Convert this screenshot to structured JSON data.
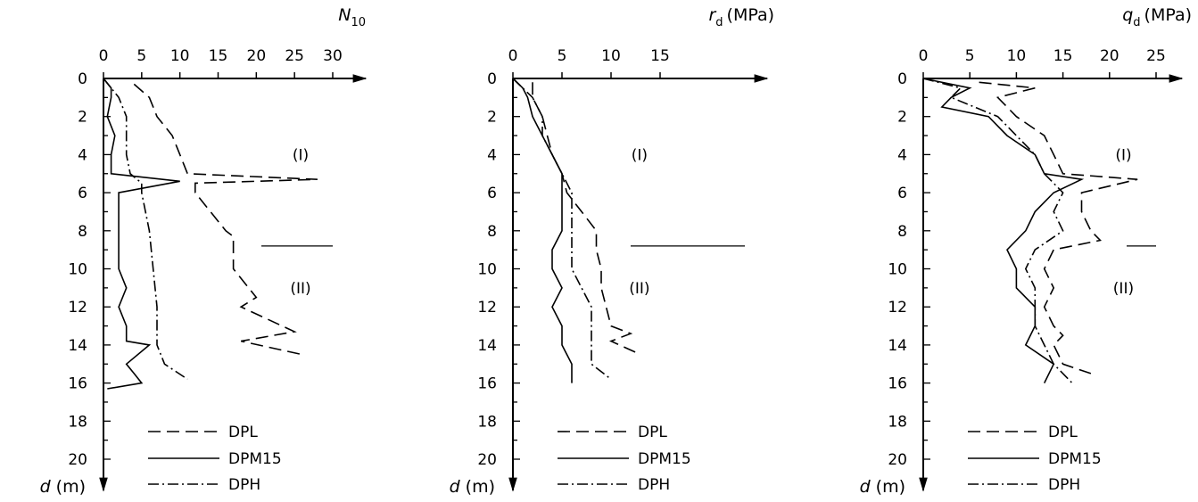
{
  "chart_data": [
    {
      "type": "line",
      "panel": "N10",
      "x_axis_label": {
        "main": "N",
        "sub": "10",
        "unit": ""
      },
      "y_axis_label": {
        "main": "d",
        "unit": "(m)"
      },
      "xlim": [
        0,
        30
      ],
      "ylim": [
        0,
        20
      ],
      "x_ticks": [
        0,
        5,
        10,
        15,
        20,
        25,
        30
      ],
      "y_ticks": [
        0,
        2,
        4,
        6,
        8,
        10,
        12,
        14,
        16,
        18,
        20
      ],
      "legend": [
        "DPL",
        "DPM15",
        "DPH"
      ],
      "legend_position": "bottom",
      "layer_labels": [
        {
          "text": "(I)",
          "depth": 4
        },
        {
          "text": "(II)",
          "depth": 11
        }
      ],
      "layer_boundary_depth": 8.8,
      "series": [
        {
          "name": "DPL",
          "style": "dashed",
          "depth": [
            0.3,
            1,
            2,
            3,
            4,
            5,
            5.3,
            5.5,
            6,
            8,
            8.3,
            10,
            11.5,
            12,
            13.3,
            13.8,
            14.5
          ],
          "value": [
            4,
            6,
            7,
            9,
            10,
            11,
            28,
            12,
            12,
            16,
            17,
            17,
            20,
            18,
            25,
            18,
            26
          ]
        },
        {
          "name": "DPM15",
          "style": "solid",
          "depth": [
            0,
            0.5,
            1,
            2,
            3,
            4,
            5,
            5.4,
            6,
            8,
            10,
            11,
            12,
            13,
            13.8,
            14,
            15,
            15.5,
            16,
            16.3
          ],
          "value": [
            0,
            1,
            1,
            0.5,
            1.5,
            1,
            1,
            10,
            2,
            2,
            2,
            3,
            2,
            3,
            3,
            6,
            3,
            4,
            5,
            0.5
          ]
        },
        {
          "name": "DPH",
          "style": "dash-dot",
          "depth": [
            0,
            0.5,
            1,
            2,
            3,
            4,
            5,
            5.5,
            6,
            8,
            10,
            12,
            13,
            14,
            15,
            15.8
          ],
          "value": [
            0,
            1,
            2,
            3,
            3,
            3,
            3.5,
            5,
            5,
            6,
            6.5,
            7,
            7,
            7,
            8,
            11
          ]
        }
      ]
    },
    {
      "type": "line",
      "panel": "rd",
      "x_axis_label": {
        "main": "r",
        "sub": "d",
        "unit": "(MPa)"
      },
      "y_axis_label": {
        "main": "d",
        "unit": "(m)"
      },
      "xlim": [
        0,
        15
      ],
      "ylim": [
        0,
        20
      ],
      "x_ticks": [
        0,
        5,
        10,
        15
      ],
      "y_ticks": [
        0,
        2,
        4,
        6,
        8,
        10,
        12,
        14,
        16,
        18,
        20
      ],
      "legend": [
        "DPL",
        "DPM15",
        "DPH"
      ],
      "legend_position": "bottom",
      "layer_labels": [
        {
          "text": "(I)",
          "depth": 4
        },
        {
          "text": "(II)",
          "depth": 11
        }
      ],
      "layer_boundary_depth": 8.8,
      "series": [
        {
          "name": "DPL",
          "style": "dashed",
          "depth": [
            0.2,
            1,
            2,
            3,
            4,
            5,
            6,
            7,
            8,
            9,
            10,
            11,
            12,
            13,
            13.4,
            13.8,
            14.5
          ],
          "value": [
            2,
            2,
            3,
            3.5,
            4,
            5,
            5.5,
            7,
            8.5,
            8.5,
            9,
            9,
            9.5,
            10,
            12,
            10,
            13
          ]
        },
        {
          "name": "DPM15",
          "style": "solid",
          "depth": [
            0,
            0.5,
            1,
            2,
            3,
            4,
            5,
            6,
            7,
            8,
            9,
            10,
            11,
            12,
            13,
            14,
            15,
            16
          ],
          "value": [
            0,
            1,
            1.5,
            2,
            3,
            4,
            5,
            5,
            5,
            5,
            4,
            4,
            5,
            4,
            5,
            5,
            6,
            6
          ]
        },
        {
          "name": "DPH",
          "style": "dash-dot",
          "depth": [
            0,
            0.5,
            1,
            2,
            3,
            4,
            5,
            6,
            7,
            8,
            9,
            10,
            11,
            12,
            13,
            14,
            15,
            15.8
          ],
          "value": [
            0,
            1,
            2,
            3,
            3,
            4,
            5,
            6,
            6,
            6,
            6,
            6,
            7,
            8,
            8,
            8,
            8,
            10
          ]
        }
      ]
    },
    {
      "type": "line",
      "panel": "qd",
      "x_axis_label": {
        "main": "q",
        "sub": "d",
        "unit": "(MPa)"
      },
      "y_axis_label": {
        "main": "d",
        "unit": "(m)"
      },
      "xlim": [
        0,
        25
      ],
      "ylim": [
        0,
        20
      ],
      "x_ticks": [
        0,
        5,
        10,
        15,
        20,
        25
      ],
      "y_ticks": [
        0,
        2,
        4,
        6,
        8,
        10,
        12,
        14,
        16,
        18,
        20
      ],
      "legend": [
        "DPL",
        "DPM15",
        "DPH"
      ],
      "legend_position": "bottom",
      "layer_labels": [
        {
          "text": "(I)",
          "depth": 4
        },
        {
          "text": "(II)",
          "depth": 11
        }
      ],
      "layer_boundary_depth": 8.8,
      "series": [
        {
          "name": "DPL",
          "style": "dashed",
          "depth": [
            0.2,
            0.5,
            1,
            2,
            3,
            4,
            5,
            5.3,
            6,
            7,
            8,
            8.5,
            9,
            10,
            11,
            12,
            13,
            13.5,
            14,
            15,
            15.5
          ],
          "value": [
            6,
            12,
            8,
            10,
            13,
            14,
            15,
            23,
            17,
            17,
            18,
            19,
            14,
            13,
            14,
            13,
            14,
            15,
            14,
            15,
            18
          ]
        },
        {
          "name": "DPM15",
          "style": "solid",
          "depth": [
            0,
            0.5,
            1,
            1.5,
            2,
            3,
            4,
            5,
            5.3,
            6,
            7,
            8,
            9,
            10,
            11,
            12,
            13,
            14,
            15,
            16
          ],
          "value": [
            0,
            5,
            3,
            2,
            7,
            9,
            12,
            13,
            17,
            14,
            12,
            11,
            9,
            10,
            10,
            12,
            12,
            11,
            14,
            13
          ]
        },
        {
          "name": "DPH",
          "style": "dash-dot",
          "depth": [
            0,
            0.5,
            1,
            2,
            3,
            4,
            5,
            6,
            7,
            8,
            9,
            10,
            11,
            12,
            13,
            14,
            15,
            16
          ],
          "value": [
            0,
            4,
            3,
            8,
            10,
            12,
            13,
            15,
            14,
            15,
            12,
            11,
            12,
            12,
            12,
            13,
            14,
            16
          ]
        }
      ]
    }
  ]
}
